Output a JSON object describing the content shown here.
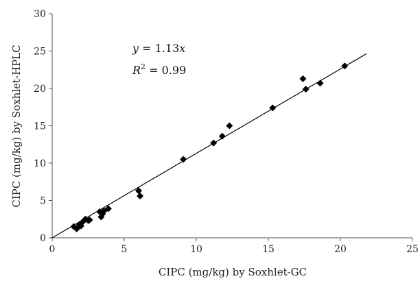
{
  "chart_data": {
    "type": "scatter",
    "title": "",
    "xlabel": "CIPC (mg/kg) by Soxhlet-GC",
    "ylabel": "CIPC (mg/kg) by Soxhlet-HPLC",
    "xlim": [
      0,
      25
    ],
    "ylim": [
      0,
      30
    ],
    "xticks": [
      0,
      5,
      10,
      15,
      20,
      25
    ],
    "yticks": [
      0,
      5,
      10,
      15,
      20,
      25,
      30
    ],
    "grid": false,
    "legend": "none",
    "marker": "diamond",
    "marker_color": "#000000",
    "line_color": "#000000",
    "annotations": {
      "equation": {
        "y_var": "y",
        "equals": " = 1.13",
        "x_var": "x"
      },
      "r_squared": {
        "base": "R",
        "exp": "2",
        "value": " = 0.99"
      }
    },
    "points": [
      {
        "x": 1.5,
        "y": 1.5
      },
      {
        "x": 1.7,
        "y": 1.2
      },
      {
        "x": 1.8,
        "y": 1.4
      },
      {
        "x": 1.9,
        "y": 1.8
      },
      {
        "x": 2.0,
        "y": 1.6
      },
      {
        "x": 2.1,
        "y": 2.1
      },
      {
        "x": 2.3,
        "y": 2.5
      },
      {
        "x": 2.5,
        "y": 2.3
      },
      {
        "x": 2.6,
        "y": 2.4
      },
      {
        "x": 3.3,
        "y": 3.5
      },
      {
        "x": 3.4,
        "y": 2.8
      },
      {
        "x": 3.5,
        "y": 3.2
      },
      {
        "x": 3.6,
        "y": 3.6
      },
      {
        "x": 3.9,
        "y": 3.9
      },
      {
        "x": 6.0,
        "y": 6.3
      },
      {
        "x": 6.1,
        "y": 5.6
      },
      {
        "x": 9.1,
        "y": 10.5
      },
      {
        "x": 11.2,
        "y": 12.7
      },
      {
        "x": 11.8,
        "y": 13.6
      },
      {
        "x": 12.3,
        "y": 15.0
      },
      {
        "x": 15.3,
        "y": 17.4
      },
      {
        "x": 17.4,
        "y": 21.3
      },
      {
        "x": 17.6,
        "y": 19.9
      },
      {
        "x": 18.6,
        "y": 20.7
      },
      {
        "x": 20.3,
        "y": 23.0
      }
    ],
    "trendline": {
      "slope": 1.13,
      "intercept": 0,
      "x_start": 0,
      "x_end": 21.8
    }
  }
}
